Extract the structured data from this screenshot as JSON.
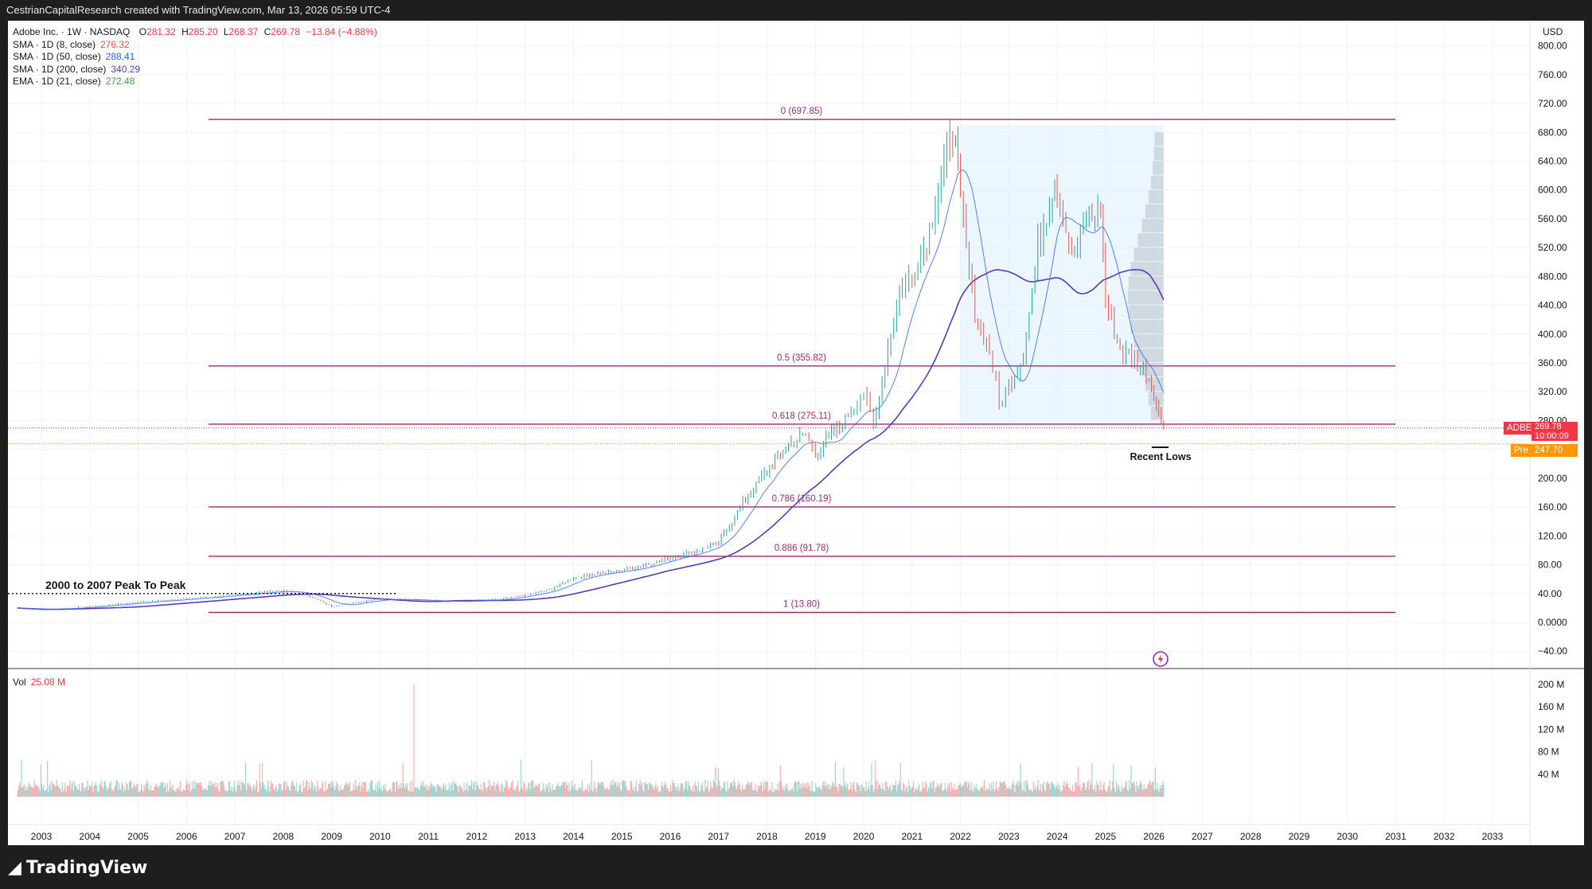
{
  "header": {
    "attribution": "CestrianCapitalResearch created with TradingView.com, Mar 13, 2026 05:59 UTC-4"
  },
  "legend": {
    "symbol": "Adobe Inc. · 1W · NASDAQ",
    "ohlc": {
      "o_label": "O",
      "o": "281.32",
      "h_label": "H",
      "h": "285.20",
      "l_label": "L",
      "l": "268.37",
      "c_label": "C",
      "c": "269.78",
      "change": "−13.84 (−4.88%)"
    },
    "indicators": [
      {
        "label": "SMA · 1D (8, close)",
        "value": "276.32",
        "color": "#e0554d"
      },
      {
        "label": "SMA · 1D (50, close)",
        "value": "288.41",
        "color": "#2962ff"
      },
      {
        "label": "SMA · 1D (200, close)",
        "value": "340.29",
        "color": "#5b3bb0"
      },
      {
        "label": "EMA · 1D (21, close)",
        "value": "272.48",
        "color": "#43a047"
      }
    ],
    "volume_label": "Vol",
    "volume_value": "25.08 M"
  },
  "price_axis": {
    "currency": "USD",
    "ticks": [
      "800.00",
      "760.00",
      "720.00",
      "680.00",
      "640.00",
      "600.00",
      "560.00",
      "520.00",
      "480.00",
      "440.00",
      "400.00",
      "360.00",
      "320.00",
      "280.00",
      "240.00",
      "200.00",
      "160.00",
      "120.00",
      "80.00",
      "40.00",
      "0.0000",
      "−40.00"
    ],
    "last_tag": {
      "symbol": "ADBE",
      "price": "269.78",
      "countdown": "10:00:09",
      "color": "#f23645"
    },
    "pre_tag": {
      "label": "Pre",
      "price": "247.70",
      "color": "#ff9800"
    }
  },
  "volume_axis": {
    "ticks": [
      "200 M",
      "160 M",
      "120 M",
      "80 M",
      "40 M"
    ]
  },
  "time_axis": {
    "ticks": [
      "2003",
      "2004",
      "2005",
      "2006",
      "2007",
      "2008",
      "2009",
      "2010",
      "2011",
      "2012",
      "2013",
      "2014",
      "2015",
      "2016",
      "2017",
      "2018",
      "2019",
      "2020",
      "2021",
      "2022",
      "2023",
      "2024",
      "2025",
      "2026",
      "2027",
      "2028",
      "2029",
      "2030",
      "2031",
      "2032",
      "2033"
    ]
  },
  "annotations": {
    "peak_to_peak": "2000 to 2007 Peak To Peak",
    "recent_lows": "Recent Lows"
  },
  "fib_levels": [
    {
      "label": "0 (697.85)",
      "price": 697.85
    },
    {
      "label": "0.5 (355.82)",
      "price": 355.82
    },
    {
      "label": "0.618 (275.11)",
      "price": 275.11
    },
    {
      "label": "0.786 (160.19)",
      "price": 160.19
    },
    {
      "label": "0.886 (91.78)",
      "price": 91.78
    },
    {
      "label": "1 (13.80)",
      "price": 13.8
    }
  ],
  "colors": {
    "fib": "#9c2b6e",
    "sma200": "#5b3bb0",
    "sma50": "#2962ff",
    "up": "#26a69a",
    "down": "#ef5350",
    "highlight": "#e3f2fd"
  },
  "footer": {
    "brand": "TradingView"
  },
  "chart_data": {
    "type": "line",
    "title": "Adobe Inc. · 1W · NASDAQ",
    "ylabel": "USD",
    "ylim": [
      -40,
      800
    ],
    "x_range": [
      2003,
      2033
    ],
    "series": [
      {
        "name": "Adobe Inc.",
        "x": [
          2002.5,
          2003.0,
          2004.0,
          2005.0,
          2006.0,
          2007.0,
          2007.9,
          2008.5,
          2009.0,
          2009.5,
          2010.0,
          2011.0,
          2011.8,
          2012.5,
          2013.0,
          2013.5,
          2014.0,
          2014.5,
          2015.0,
          2015.5,
          2016.0,
          2016.5,
          2017.0,
          2017.5,
          2018.0,
          2018.5,
          2018.8,
          2019.0,
          2019.5,
          2019.8,
          2020.0,
          2020.2,
          2020.5,
          2020.8,
          2021.0,
          2021.3,
          2021.6,
          2021.9,
          2022.0,
          2022.3,
          2022.6,
          2022.8,
          2023.0,
          2023.3,
          2023.6,
          2023.9,
          2024.0,
          2024.3,
          2024.6,
          2024.9,
          2025.0,
          2025.3,
          2025.6,
          2025.9,
          2026.0,
          2026.1,
          2026.2
        ],
        "y": [
          20,
          17,
          22,
          28,
          33,
          38,
          44,
          38,
          22,
          28,
          33,
          30,
          29,
          32,
          38,
          45,
          62,
          68,
          72,
          80,
          90,
          98,
          110,
          165,
          210,
          250,
          260,
          235,
          270,
          300,
          320,
          270,
          380,
          470,
          480,
          530,
          620,
          690,
          580,
          430,
          380,
          300,
          330,
          370,
          520,
          600,
          610,
          500,
          560,
          570,
          450,
          380,
          360,
          340,
          320,
          290,
          270
        ]
      }
    ]
  }
}
